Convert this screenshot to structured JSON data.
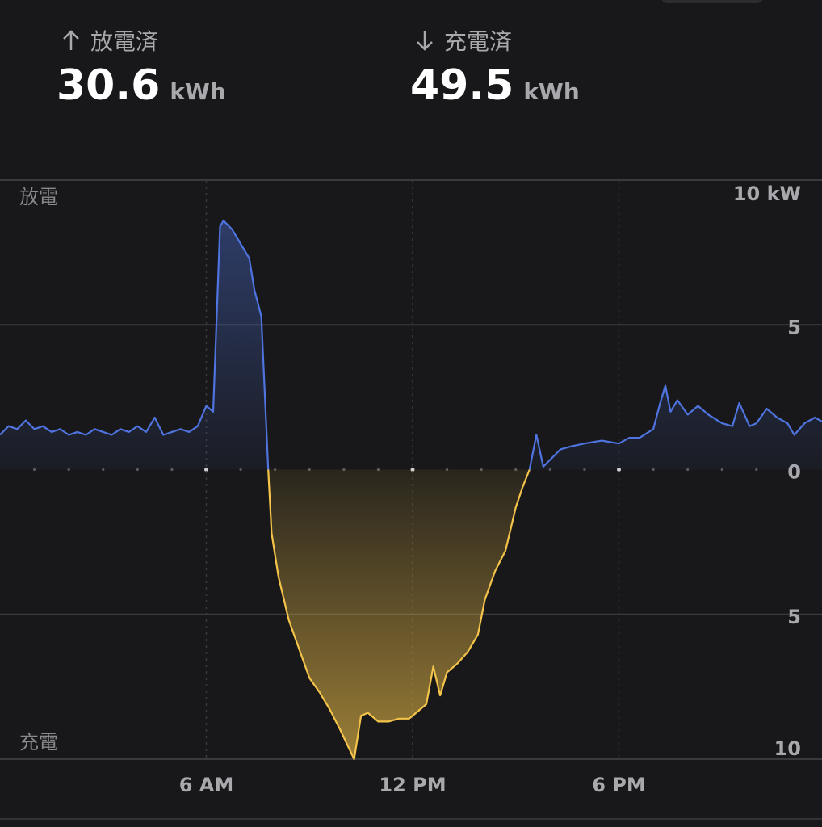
{
  "header": {
    "discharged": {
      "label": "放電済",
      "value": "30.6",
      "unit": "kWh"
    },
    "charged": {
      "label": "充電済",
      "value": "49.5",
      "unit": "kWh"
    }
  },
  "chart_data": {
    "type": "line",
    "ylabel_top": "放電",
    "ylabel_bottom": "充電",
    "x": [
      0,
      0.25,
      0.5,
      0.75,
      1,
      1.25,
      1.5,
      1.75,
      2,
      2.25,
      2.5,
      2.75,
      3,
      3.25,
      3.5,
      3.75,
      4,
      4.25,
      4.5,
      4.75,
      5,
      5.25,
      5.5,
      5.75,
      6,
      6.2,
      6.4,
      6.5,
      6.75,
      7,
      7.25,
      7.4,
      7.6,
      7.8,
      7.9,
      8.1,
      8.4,
      8.7,
      9,
      9.3,
      9.6,
      9.9,
      10.1,
      10.3,
      10.5,
      10.7,
      11,
      11.3,
      11.6,
      11.9,
      12.1,
      12.4,
      12.6,
      12.8,
      13,
      13.3,
      13.6,
      13.9,
      14.1,
      14.4,
      14.7,
      15,
      15.2,
      15.4,
      15.6,
      15.8,
      16.3,
      16.6,
      17,
      17.5,
      18,
      18.3,
      18.6,
      19,
      19.2,
      19.35,
      19.5,
      19.7,
      20,
      20.3,
      20.6,
      21,
      21.3,
      21.5,
      21.8,
      22,
      22.3,
      22.6,
      22.9,
      23.1,
      23.4,
      23.7,
      24
    ],
    "values": [
      1.2,
      1.5,
      1.4,
      1.7,
      1.4,
      1.5,
      1.3,
      1.4,
      1.2,
      1.3,
      1.2,
      1.4,
      1.3,
      1.2,
      1.4,
      1.3,
      1.5,
      1.3,
      1.8,
      1.2,
      1.3,
      1.4,
      1.3,
      1.5,
      2.2,
      2.0,
      8.4,
      8.6,
      8.3,
      7.8,
      7.3,
      6.2,
      5.3,
      0,
      -2.2,
      -3.7,
      -5.2,
      -6.2,
      -7.2,
      -7.7,
      -8.3,
      -9.0,
      -9.5,
      -10.0,
      -8.5,
      -8.4,
      -8.7,
      -8.7,
      -8.6,
      -8.6,
      -8.4,
      -8.1,
      -6.8,
      -7.8,
      -7.0,
      -6.7,
      -6.3,
      -5.7,
      -4.5,
      -3.5,
      -2.8,
      -1.3,
      -0.6,
      0,
      1.2,
      0.1,
      0.7,
      0.8,
      0.9,
      1.0,
      0.9,
      1.1,
      1.1,
      1.4,
      2.3,
      2.9,
      2.0,
      2.4,
      1.9,
      2.2,
      1.9,
      1.6,
      1.5,
      2.3,
      1.5,
      1.6,
      2.1,
      1.8,
      1.6,
      1.2,
      1.6,
      1.8,
      1.6
    ],
    "colors": {
      "positive": "#4f74e0",
      "negative": "#f3c34a"
    },
    "xlim": [
      0,
      24
    ],
    "xticks": [
      {
        "value": 6,
        "label": "6 AM"
      },
      {
        "value": 12,
        "label": "12 PM"
      },
      {
        "value": 18,
        "label": "6 PM"
      }
    ],
    "ylim": [
      -10,
      10
    ],
    "yticks": [
      {
        "value": 10,
        "label": "10 kW"
      },
      5,
      0,
      {
        "value": -5,
        "label": "5"
      },
      {
        "value": -10,
        "label": "10"
      }
    ],
    "grid": true
  }
}
